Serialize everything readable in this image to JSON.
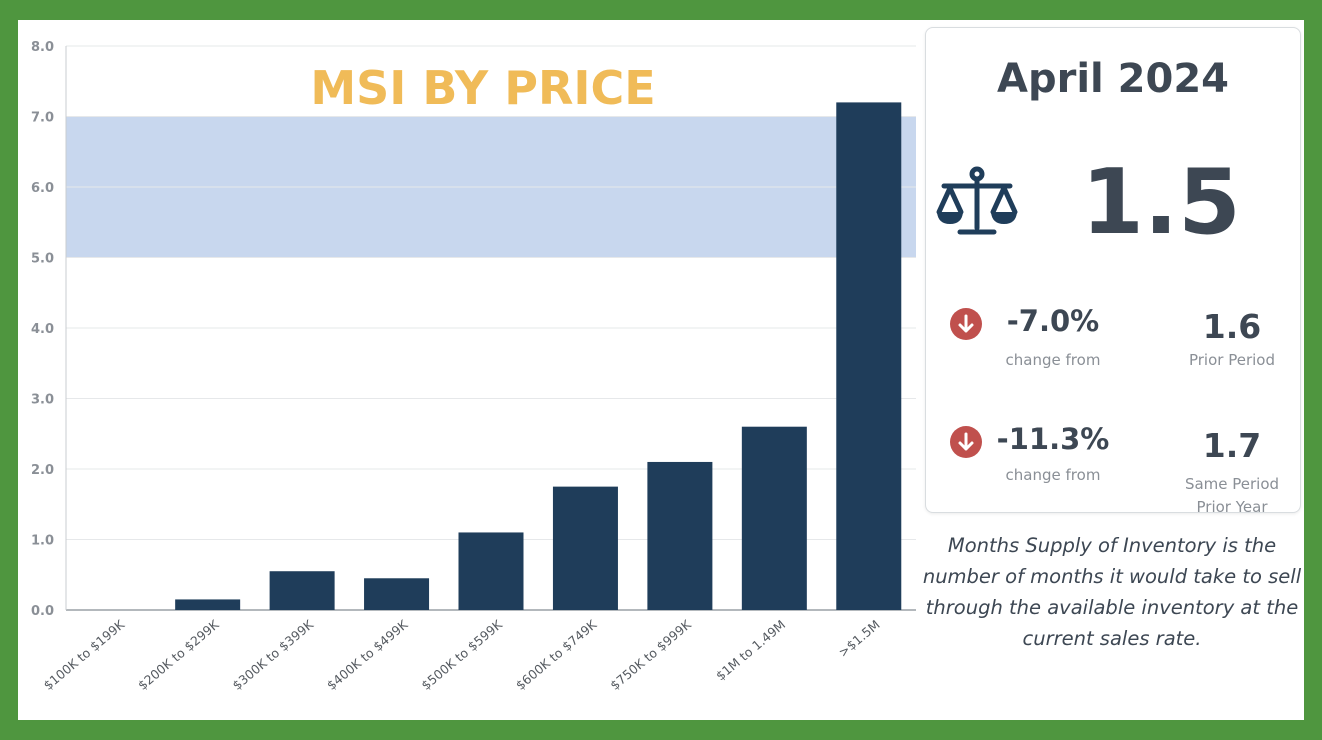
{
  "chart_data": {
    "type": "bar",
    "title": "MSI BY PRICE",
    "xlabel": "",
    "ylabel": "",
    "categories": [
      "$100K to $199K",
      "$200K to $299K",
      "$300K to $399K",
      "$400K to $499K",
      "$500K to $599K",
      "$600K to $749K",
      "$750K to $999K",
      "$1M to 1.49M",
      ">$1.5M"
    ],
    "values": [
      0.0,
      0.15,
      0.55,
      0.45,
      1.1,
      1.75,
      2.1,
      2.6,
      7.2
    ],
    "ylim": [
      0,
      8
    ],
    "yticks": [
      "0.0",
      "1.0",
      "2.0",
      "3.0",
      "4.0",
      "5.0",
      "6.0",
      "7.0",
      "8.0"
    ],
    "balanced_band": [
      5,
      7
    ],
    "grid": true,
    "bar_color": "#1f3d5a",
    "band_color": "#c8d7ee",
    "title_color": "#f0bb58"
  },
  "summary": {
    "period": "April 2024",
    "main_value": "1.5",
    "icon": "scale-icon",
    "prior_period": {
      "change": "-7.0%",
      "change_label": "change from",
      "value": "1.6",
      "label": "Prior Period"
    },
    "prior_year": {
      "change": "-11.3%",
      "change_label": "change from",
      "value": "1.7",
      "label_line1": "Same Period",
      "label_line2": "Prior Year"
    },
    "down_color": "#c0504d"
  },
  "description": {
    "line1": "Months Supply of Inventory is the",
    "line2": "number of months it would take to sell",
    "line3": "through the available inventory at the",
    "line4": "current sales rate."
  }
}
